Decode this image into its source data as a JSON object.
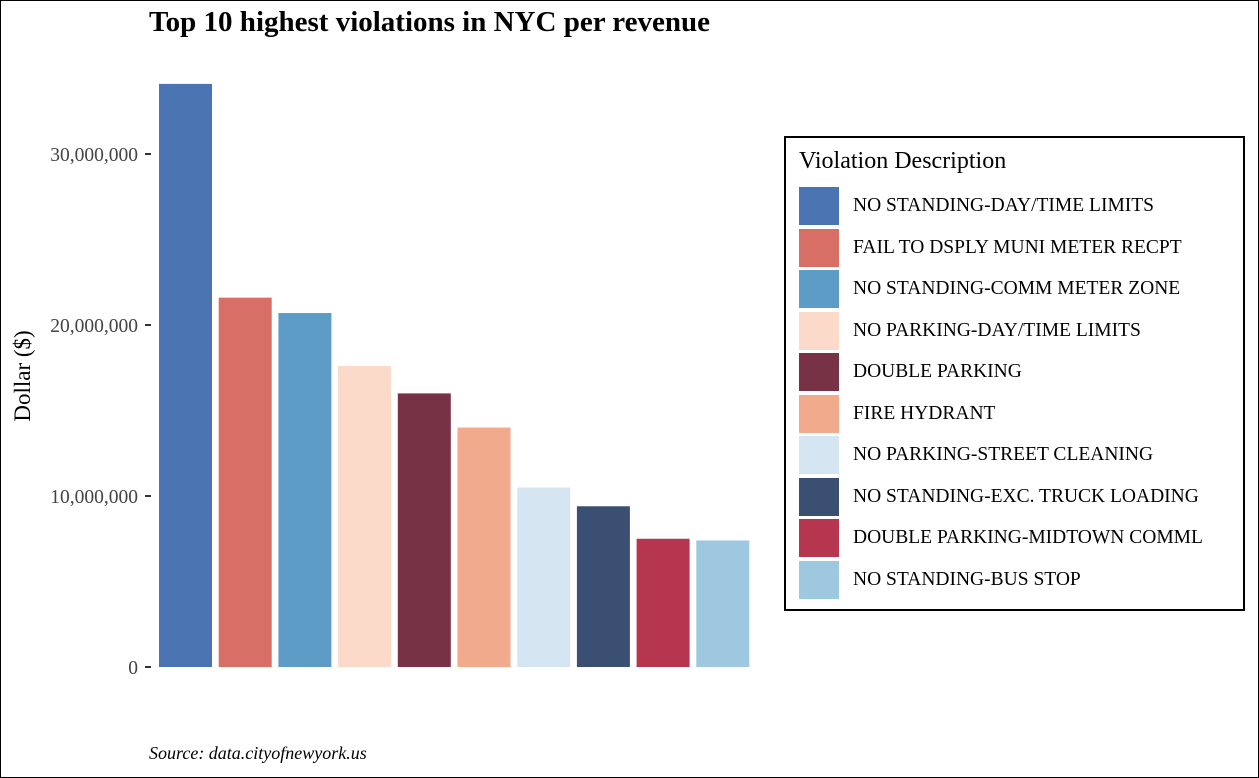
{
  "chart_data": {
    "type": "bar",
    "title": "Top 10 highest violations in NYC per revenue",
    "xlabel": "",
    "ylabel": "Dollar ($)",
    "ylim": [
      0,
      35000000
    ],
    "y_ticks": [
      0,
      10000000,
      20000000,
      30000000
    ],
    "y_tick_labels": [
      "0",
      "10,000,000",
      "20,000,000",
      "30,000,000"
    ],
    "grid": false,
    "legend_title": "Violation Description",
    "legend_position": "right",
    "categories": [
      "NO STANDING-DAY/TIME LIMITS",
      "FAIL TO DSPLY MUNI METER RECPT",
      "NO STANDING-COMM METER ZONE",
      "NO PARKING-DAY/TIME LIMITS",
      "DOUBLE PARKING",
      "FIRE HYDRANT",
      "NO PARKING-STREET CLEANING",
      "NO STANDING-EXC. TRUCK LOADING",
      "DOUBLE PARKING-MIDTOWN COMML",
      "NO STANDING-BUS STOP"
    ],
    "values": [
      34100000,
      21600000,
      20700000,
      17600000,
      16000000,
      14000000,
      10500000,
      9400000,
      7500000,
      7400000
    ],
    "colors": [
      "#4a74b2",
      "#d76f66",
      "#5e9cc8",
      "#fcdac9",
      "#773246",
      "#f2aa8c",
      "#d5e6f2",
      "#3b4f72",
      "#b6354f",
      "#9ec8e0"
    ],
    "caption": "Source: data.cityofnewyork.us"
  }
}
